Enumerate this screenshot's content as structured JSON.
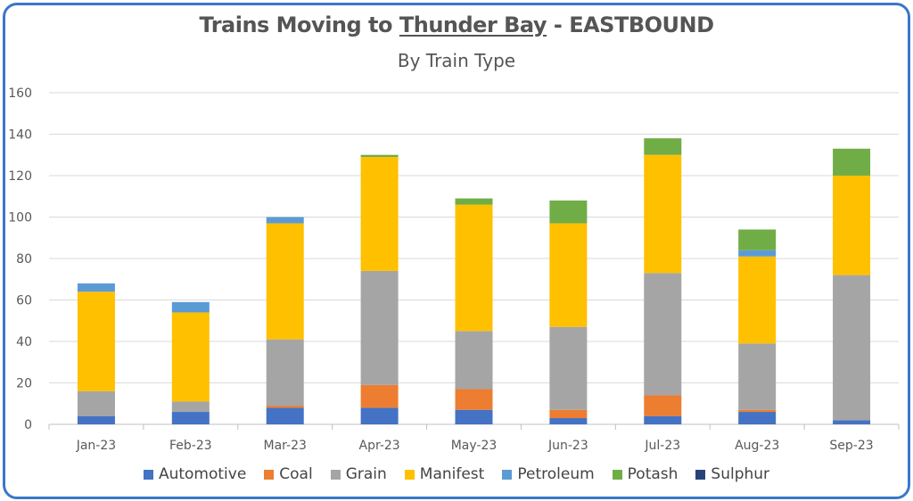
{
  "chart_data": {
    "type": "bar",
    "stacked": true,
    "title_parts": [
      "Trains Moving to ",
      "Thunder Bay",
      " - EASTBOUND"
    ],
    "subtitle": "By Train Type",
    "categories": [
      "Jan-23",
      "Feb-23",
      "Mar-23",
      "Apr-23",
      "May-23",
      "Jun-23",
      "Jul-23",
      "Aug-23",
      "Sep-23"
    ],
    "ylim": [
      0,
      160
    ],
    "yticks": [
      0,
      20,
      40,
      60,
      80,
      100,
      120,
      140,
      160
    ],
    "grid": true,
    "legend_position": "bottom",
    "series": [
      {
        "name": "Automotive",
        "color": "#4472c4",
        "values": [
          4,
          6,
          8,
          8,
          7,
          3,
          4,
          6,
          2
        ]
      },
      {
        "name": "Coal",
        "color": "#ed7d31",
        "values": [
          0,
          0,
          1,
          11,
          10,
          4,
          10,
          1,
          0
        ]
      },
      {
        "name": "Grain",
        "color": "#a5a5a5",
        "values": [
          12,
          5,
          32,
          55,
          28,
          40,
          59,
          32,
          70
        ]
      },
      {
        "name": "Manifest",
        "color": "#ffc000",
        "values": [
          48,
          43,
          56,
          55,
          61,
          50,
          57,
          42,
          48
        ]
      },
      {
        "name": "Petroleum",
        "color": "#5b9bd5",
        "values": [
          4,
          5,
          3,
          0,
          0,
          0,
          0,
          3,
          0
        ]
      },
      {
        "name": "Potash",
        "color": "#70ad47",
        "values": [
          0,
          0,
          0,
          1,
          3,
          11,
          8,
          10,
          13
        ]
      },
      {
        "name": "Sulphur",
        "color": "#264478",
        "values": [
          0,
          0,
          0,
          0,
          0,
          0,
          0,
          0,
          0
        ]
      }
    ]
  }
}
